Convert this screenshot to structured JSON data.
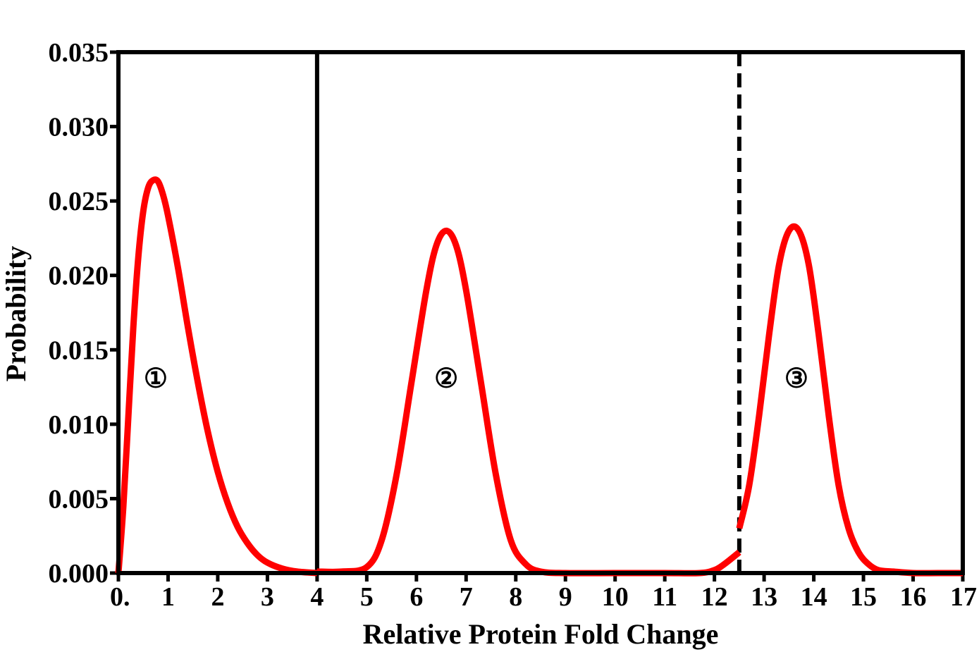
{
  "chart_data": {
    "type": "line",
    "title": "",
    "xlabel": "Relative Protein Fold Change",
    "ylabel": "Probability",
    "xlim": [
      0,
      17
    ],
    "ylim": [
      0,
      0.035
    ],
    "grid": false,
    "x_tick_labels": [
      "0.",
      "1",
      "2",
      "3",
      "4",
      "5",
      "6",
      "7",
      "8",
      "9",
      "10",
      "11",
      "12",
      "13",
      "14",
      "15",
      "16",
      "17"
    ],
    "y_tick_labels": [
      "0.000",
      "0.005",
      "0.010",
      "0.015",
      "0.020",
      "0.025",
      "0.030",
      "0.035"
    ],
    "curve_color": "#ff0000",
    "series": [
      {
        "x": [
          0,
          0.1,
          0.2,
          0.3,
          0.4,
          0.5,
          0.6,
          0.7,
          0.8,
          0.9,
          1.0,
          1.2,
          1.4,
          1.6,
          1.8,
          2.0,
          2.2,
          2.4,
          2.6,
          2.8,
          3.0,
          3.3,
          3.6,
          4.0
        ],
        "y": [
          0,
          0.0045,
          0.0105,
          0.0165,
          0.0212,
          0.0243,
          0.0259,
          0.0264,
          0.0263,
          0.0254,
          0.024,
          0.0205,
          0.0165,
          0.0128,
          0.0095,
          0.0068,
          0.0047,
          0.0031,
          0.002,
          0.0012,
          0.0007,
          0.0003,
          0.0001,
          0.0
        ]
      },
      {
        "x": [
          4.0,
          4.5,
          5.0,
          5.3,
          5.6,
          5.9,
          6.2,
          6.4,
          6.6,
          6.8,
          7.0,
          7.3,
          7.6,
          7.9,
          8.2,
          8.5,
          9.0,
          10.0,
          11.0,
          11.7,
          12.0,
          12.2,
          12.5
        ],
        "y": [
          0.0001,
          0.0001,
          0.0004,
          0.0022,
          0.0066,
          0.0128,
          0.019,
          0.022,
          0.023,
          0.022,
          0.019,
          0.0128,
          0.0066,
          0.0022,
          0.0006,
          0.0001,
          0.0,
          0.0,
          0.0,
          0.0,
          0.0002,
          0.0006,
          0.0014
        ]
      },
      {
        "x": [
          12.5,
          12.7,
          12.9,
          13.1,
          13.3,
          13.5,
          13.7,
          13.9,
          14.1,
          14.3,
          14.5,
          14.7,
          14.9,
          15.1,
          15.3,
          15.6,
          16.0,
          16.5,
          17.0
        ],
        "y": [
          0.003,
          0.0059,
          0.0106,
          0.016,
          0.0207,
          0.023,
          0.023,
          0.0207,
          0.016,
          0.0106,
          0.0059,
          0.003,
          0.0014,
          0.0006,
          0.0002,
          0.0001,
          0.0,
          0.0,
          0.0
        ]
      }
    ],
    "annotations": [
      {
        "text": "①",
        "x": 0.75,
        "y": 0.0131
      },
      {
        "text": "②",
        "x": 6.6,
        "y": 0.0131
      },
      {
        "text": "③",
        "x": 13.65,
        "y": 0.0131
      }
    ],
    "reference_lines": [
      {
        "x": 4,
        "style": "solid"
      },
      {
        "x": 12.5,
        "style": "dashed"
      }
    ]
  }
}
